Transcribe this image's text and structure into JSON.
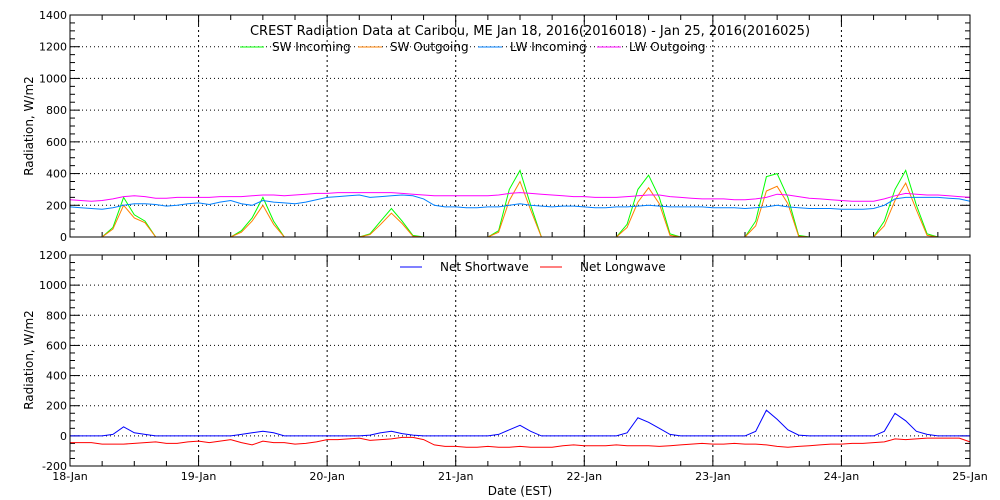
{
  "chart_data": [
    {
      "type": "line",
      "title": "CREST Radiation Data at Caribou, ME   Jan 18, 2016(2016018) - Jan 25, 2016(2016025)",
      "ylabel": "Radiation, W/m2",
      "xlabel": "",
      "ylim": [
        0,
        1400
      ],
      "yticks": [
        0,
        200,
        400,
        600,
        800,
        1000,
        1200,
        1400
      ],
      "x_start": "18-Jan",
      "x_step_hours": 2,
      "grid": true,
      "legend": "top",
      "series": [
        {
          "name": "SW Incoming",
          "color": "#00ff00",
          "values": [
            0,
            0,
            0,
            0,
            60,
            250,
            140,
            100,
            0,
            0,
            0,
            0,
            0,
            0,
            0,
            0,
            40,
            120,
            250,
            100,
            0,
            0,
            0,
            0,
            0,
            0,
            0,
            0,
            20,
            100,
            180,
            100,
            10,
            0,
            0,
            0,
            0,
            0,
            0,
            0,
            40,
            300,
            420,
            200,
            0,
            0,
            0,
            0,
            0,
            0,
            0,
            0,
            80,
            300,
            390,
            250,
            20,
            0,
            0,
            0,
            0,
            0,
            0,
            0,
            100,
            380,
            400,
            250,
            10,
            0,
            0,
            0,
            0,
            0,
            0,
            0,
            100,
            300,
            420,
            200,
            20,
            0,
            0,
            0,
            0
          ]
        },
        {
          "name": "SW Outgoing",
          "color": "#ff8000",
          "values": [
            0,
            0,
            0,
            0,
            50,
            200,
            120,
            90,
            0,
            0,
            0,
            0,
            0,
            0,
            0,
            0,
            30,
            100,
            200,
            80,
            0,
            0,
            0,
            0,
            0,
            0,
            0,
            0,
            15,
            80,
            150,
            85,
            5,
            0,
            0,
            0,
            0,
            0,
            0,
            0,
            30,
            230,
            350,
            170,
            0,
            0,
            0,
            0,
            0,
            0,
            0,
            0,
            60,
            220,
            310,
            210,
            10,
            0,
            0,
            0,
            0,
            0,
            0,
            0,
            70,
            290,
            320,
            210,
            5,
            0,
            0,
            0,
            0,
            0,
            0,
            0,
            70,
            230,
            340,
            170,
            10,
            0,
            0,
            0,
            0
          ]
        },
        {
          "name": "LW Incoming",
          "color": "#0080ff",
          "values": [
            190,
            185,
            180,
            175,
            185,
            200,
            210,
            210,
            205,
            195,
            200,
            210,
            215,
            205,
            220,
            230,
            210,
            200,
            230,
            220,
            215,
            210,
            220,
            235,
            250,
            255,
            260,
            265,
            250,
            255,
            260,
            265,
            260,
            240,
            200,
            190,
            190,
            185,
            185,
            190,
            190,
            200,
            210,
            200,
            195,
            190,
            195,
            195,
            190,
            185,
            185,
            190,
            190,
            195,
            200,
            195,
            190,
            190,
            190,
            190,
            185,
            185,
            185,
            180,
            185,
            190,
            200,
            190,
            185,
            180,
            180,
            180,
            175,
            175,
            175,
            180,
            200,
            240,
            250,
            250,
            250,
            250,
            245,
            240,
            225
          ]
        },
        {
          "name": "LW Outgoing",
          "color": "#ff00ff",
          "values": [
            235,
            230,
            225,
            230,
            240,
            255,
            260,
            255,
            245,
            245,
            250,
            250,
            250,
            250,
            255,
            255,
            255,
            260,
            265,
            265,
            260,
            265,
            270,
            275,
            275,
            280,
            280,
            280,
            280,
            280,
            280,
            275,
            270,
            265,
            260,
            260,
            260,
            260,
            260,
            260,
            265,
            275,
            280,
            275,
            270,
            265,
            260,
            255,
            255,
            250,
            250,
            250,
            255,
            260,
            265,
            265,
            255,
            250,
            245,
            240,
            240,
            240,
            235,
            235,
            240,
            250,
            270,
            265,
            255,
            245,
            240,
            235,
            230,
            225,
            225,
            225,
            240,
            260,
            275,
            270,
            265,
            265,
            260,
            255,
            250
          ]
        }
      ]
    },
    {
      "type": "line",
      "title": "",
      "ylabel": "Radiation, W/m2",
      "xlabel": "Date (EST)",
      "ylim": [
        -200,
        1200
      ],
      "yticks": [
        -200,
        0,
        200,
        400,
        600,
        800,
        1000,
        1200
      ],
      "xticks": [
        "18-Jan",
        "19-Jan",
        "20-Jan",
        "21-Jan",
        "22-Jan",
        "23-Jan",
        "24-Jan",
        "25-Jan"
      ],
      "x_step_hours": 2,
      "grid": true,
      "legend": "top",
      "series": [
        {
          "name": "Net Shortwave",
          "color": "#0000ff",
          "values": [
            0,
            0,
            0,
            0,
            10,
            60,
            20,
            10,
            0,
            0,
            0,
            0,
            0,
            0,
            0,
            0,
            10,
            20,
            30,
            20,
            0,
            0,
            0,
            0,
            0,
            0,
            0,
            0,
            5,
            20,
            30,
            15,
            5,
            0,
            0,
            0,
            0,
            0,
            0,
            0,
            10,
            40,
            70,
            30,
            0,
            0,
            0,
            0,
            0,
            0,
            0,
            0,
            20,
            120,
            90,
            50,
            10,
            0,
            0,
            0,
            0,
            0,
            0,
            0,
            30,
            170,
            110,
            40,
            5,
            0,
            0,
            0,
            0,
            0,
            0,
            0,
            30,
            150,
            100,
            30,
            10,
            0,
            0,
            0,
            0
          ]
        },
        {
          "name": "Net Longwave",
          "color": "#ff0000",
          "values": [
            -45,
            -45,
            -45,
            -55,
            -55,
            -55,
            -50,
            -45,
            -40,
            -50,
            -50,
            -40,
            -35,
            -45,
            -35,
            -25,
            -45,
            -60,
            -35,
            -45,
            -45,
            -55,
            -50,
            -40,
            -25,
            -25,
            -20,
            -15,
            -30,
            -25,
            -20,
            -10,
            -10,
            -25,
            -60,
            -70,
            -70,
            -75,
            -75,
            -70,
            -75,
            -75,
            -70,
            -75,
            -75,
            -75,
            -65,
            -60,
            -65,
            -65,
            -65,
            -60,
            -65,
            -65,
            -65,
            -70,
            -65,
            -60,
            -55,
            -50,
            -55,
            -55,
            -50,
            -55,
            -55,
            -60,
            -70,
            -75,
            -70,
            -65,
            -60,
            -55,
            -55,
            -50,
            -50,
            -45,
            -40,
            -20,
            -25,
            -20,
            -15,
            -15,
            -15,
            -15,
            -40
          ]
        }
      ]
    }
  ]
}
